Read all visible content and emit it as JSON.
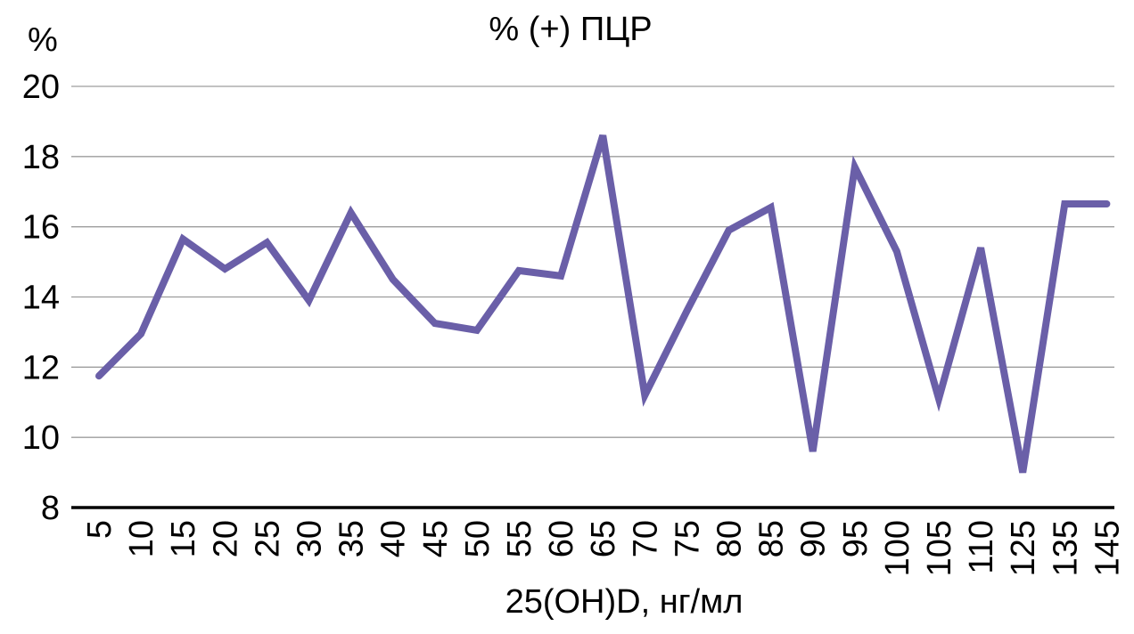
{
  "chart_data": {
    "type": "line",
    "title": "% (+) ПЦР",
    "ylabel": "%",
    "xlabel": "25(OH)D, нг/мл",
    "categories": [
      "5",
      "10",
      "15",
      "20",
      "25",
      "30",
      "35",
      "40",
      "45",
      "50",
      "55",
      "60",
      "65",
      "70",
      "75",
      "80",
      "85",
      "90",
      "95",
      "100",
      "105",
      "110",
      "125",
      "135",
      "145"
    ],
    "series": [
      {
        "name": "% (+) ПЦР",
        "values": [
          11.75,
          12.95,
          15.65,
          14.8,
          15.55,
          13.9,
          16.4,
          14.5,
          13.25,
          13.05,
          14.75,
          14.6,
          18.6,
          11.2,
          13.6,
          15.9,
          16.55,
          9.6,
          17.7,
          15.3,
          11.1,
          15.4,
          9.0,
          16.65,
          16.65
        ]
      }
    ],
    "ylim": [
      8,
      20
    ],
    "yticks": [
      8,
      10,
      12,
      14,
      16,
      18,
      20
    ],
    "grid": true,
    "legend_position": "none",
    "x_tick_rotation_degrees": 90,
    "line_color": "#6a5fa8",
    "gridline_color": "#9d9d9d",
    "axis_color": "#000000",
    "text_color": "#000000"
  }
}
